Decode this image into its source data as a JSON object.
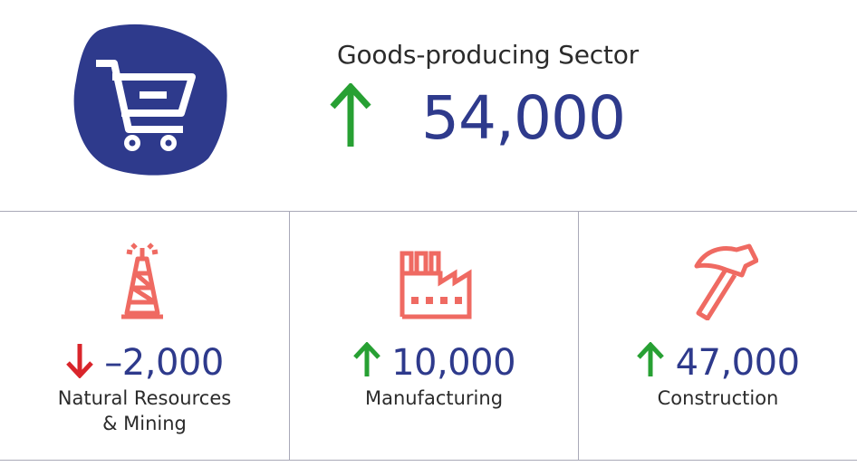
{
  "header": {
    "title": "Goods-producing Sector",
    "value": "54,000",
    "direction": "up",
    "icon": "shopping-cart-icon"
  },
  "categories": [
    {
      "name_line1": "Natural Resources",
      "name_line2": "& Mining",
      "value": "–2,000",
      "direction": "down",
      "icon": "oil-derrick-icon"
    },
    {
      "name_line1": "Manufacturing",
      "name_line2": "",
      "value": "10,000",
      "direction": "up",
      "icon": "factory-icon"
    },
    {
      "name_line1": "Construction",
      "name_line2": "",
      "value": "47,000",
      "direction": "up",
      "icon": "hammer-icon"
    }
  ],
  "colors": {
    "brand_blue": "#2e3a8c",
    "up_green": "#27a033",
    "down_red": "#d9252b",
    "icon_coral": "#ef6a62"
  }
}
